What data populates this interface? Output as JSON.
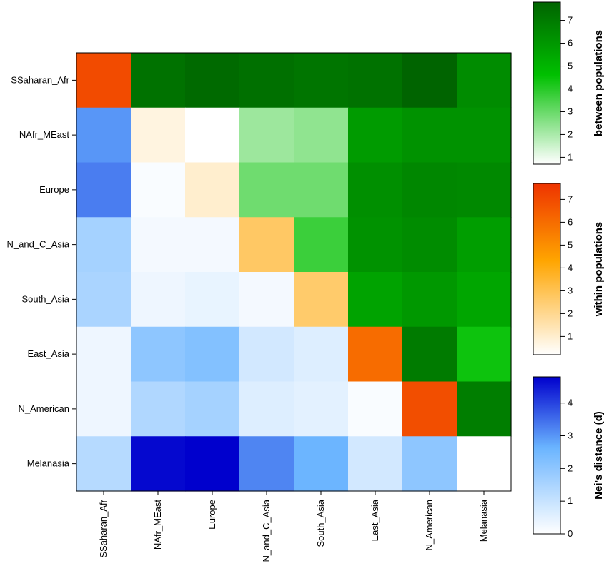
{
  "chart_data": {
    "type": "heatmap",
    "row_labels": [
      "SSaharan_Afr",
      "NAfr_MEast",
      "Europe",
      "N_and_C_Asia",
      "South_Asia",
      "East_Asia",
      "N_American",
      "Melanasia"
    ],
    "col_labels": [
      "SSaharan_Afr",
      "NAfr_MEast",
      "Europe",
      "N_and_C_Asia",
      "South_Asia",
      "East_Asia",
      "N_American",
      "Melanasia"
    ],
    "matrix": [
      [
        7.0,
        7.3,
        7.6,
        7.4,
        7.2,
        7.3,
        7.8,
        6.4
      ],
      [
        3.0,
        0.7,
        0.7,
        2.2,
        2.4,
        5.9,
        6.2,
        6.2
      ],
      [
        3.3,
        0.1,
        1.0,
        2.9,
        2.9,
        6.3,
        6.6,
        6.5
      ],
      [
        1.6,
        0.2,
        0.2,
        2.7,
        3.7,
        6.2,
        6.4,
        5.8
      ],
      [
        1.5,
        0.3,
        0.4,
        0.2,
        2.6,
        5.6,
        6.0,
        5.5
      ],
      [
        0.3,
        2.0,
        2.2,
        0.8,
        0.6,
        6.0,
        7.0,
        4.4
      ],
      [
        0.3,
        1.4,
        1.6,
        0.6,
        0.5,
        0.1,
        6.9,
        6.9
      ],
      [
        1.3,
        4.7,
        4.8,
        3.2,
        2.6,
        0.8,
        2.0,
        0.0
      ]
    ],
    "cell_groups": {
      "upper": "between populations",
      "diagonal": "within populations",
      "lower": "Nei's distance (d)"
    },
    "colorbars": [
      {
        "title": "between populations",
        "range": [
          0.7,
          7.8
        ],
        "ticks": [
          1,
          2,
          3,
          4,
          5,
          6,
          7
        ],
        "low_color": "#ffffff",
        "high_color": "#006400",
        "mid_color": "#00c000"
      },
      {
        "title": "within populations",
        "range": [
          0.2,
          7.7
        ],
        "ticks": [
          1,
          2,
          3,
          4,
          5,
          6,
          7
        ],
        "low_color": "#ffffff",
        "high_color": "#ee3300",
        "mid_color": "#ffa500"
      },
      {
        "title": "Nei's distance (d)",
        "range": [
          0,
          4.8
        ],
        "ticks": [
          0,
          1,
          2,
          3,
          4
        ],
        "low_color": "#ffffff",
        "high_color": "#0000cd",
        "mid_color": "#6ab4ff"
      }
    ]
  }
}
